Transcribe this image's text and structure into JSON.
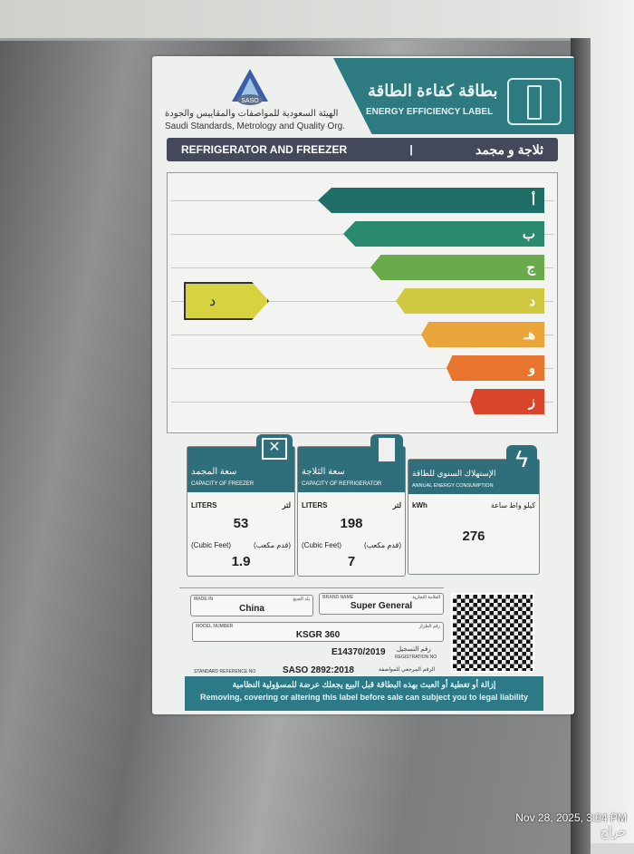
{
  "header": {
    "title_ar": "بطاقة كفاءة الطاقة",
    "title_en": "ENERGY EFFICIENCY LABEL",
    "logo_text": "SASO",
    "org_ar": "الهيئة السعودية للمواصفات والمقاييس والجودة",
    "org_en": "Saudi Standards, Metrology and Quality Org."
  },
  "category": {
    "en": "REFRIGERATOR AND FREEZER",
    "separator": "|",
    "ar": "ثلاجة و مجمد"
  },
  "rating": {
    "classes": [
      {
        "letter": "أ",
        "color": "#1f6e68"
      },
      {
        "letter": "ب",
        "color": "#2a8a70"
      },
      {
        "letter": "ج",
        "color": "#6aaa4c"
      },
      {
        "letter": "د",
        "color": "#cfc840"
      },
      {
        "letter": "هـ",
        "color": "#eaa53a"
      },
      {
        "letter": "و",
        "color": "#e8752e"
      },
      {
        "letter": "ز",
        "color": "#d9452a"
      }
    ],
    "selected": "د",
    "selected_index": 3
  },
  "freezer": {
    "title_ar": "سعة المجمد",
    "title_en": "CAPACITY OF FREEZER",
    "unit_en": "LITERS",
    "unit_ar": "لتر",
    "liters": "53",
    "cf_en": "(Cubic Feet)",
    "cf_ar": "(قدم مكعب)",
    "cubic_feet": "1.9"
  },
  "refrigerator": {
    "title_ar": "سعة الثلاجة",
    "title_en": "CAPACITY OF REFRIGERATOR",
    "unit_en": "LITERS",
    "unit_ar": "لتر",
    "liters": "198",
    "cf_en": "(Cubic Feet)",
    "cf_ar": "(قدم مكعب)",
    "cubic_feet": "7"
  },
  "energy": {
    "title_ar": "الإستهلاك السنوي للطاقة",
    "title_en": "ANNUAL ENERGY CONSUMPTION",
    "unit_en": "kWh",
    "unit_ar": "كيلو واط ساعة",
    "value": "276"
  },
  "details": {
    "made_in_label": "MADE IN",
    "made_in_ar": "بلد الصنع",
    "made_in": "China",
    "brand_label": "BRAND NAME",
    "brand_ar": "العلامة التجارية",
    "brand": "Super General",
    "model_label": "MODEL NUMBER",
    "model_ar": "رقم الطراز",
    "model": "KSGR 360",
    "reg_ar": "رقم التسجيل",
    "reg_en": "REGISTRATION NO",
    "registration": "E14370/2019",
    "std_en": "STANDARD REFERENCE NO",
    "std_ar": "الرقم المرجعي للمواصفة",
    "standard": "SASO 2892:2018"
  },
  "footer": {
    "ar": "إزالة أو تغطية أو العبث بهذه البطاقة قبل البيع يجعلك عرضة للمسؤولية النظامية",
    "en": "Removing, covering or altering this label before sale can subject you to legal liability"
  },
  "photo": {
    "timestamp": "Nov 28, 2025, 3:04 PM",
    "watermark": "حراج"
  }
}
